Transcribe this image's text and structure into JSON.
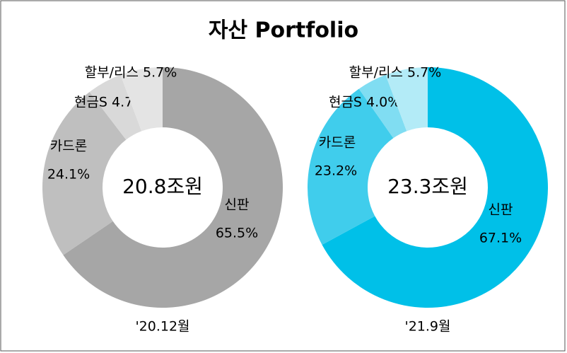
{
  "title": "자산 Portfolio",
  "chart_data": [
    {
      "type": "pie",
      "center_label": "20.8조원",
      "x_label": "'20.12월",
      "categories": [
        "신판",
        "카드론",
        "현금S",
        "할부/리스"
      ],
      "values": [
        65.5,
        24.1,
        4.7,
        5.7
      ],
      "value_labels": [
        "65.5%",
        "24.1%",
        "4.7%",
        "5.7%"
      ],
      "colors": [
        "#a6a6a6",
        "#bfbfbf",
        "#d9d9d9",
        "#e4e4e4"
      ]
    },
    {
      "type": "pie",
      "center_label": "23.3조원",
      "x_label": "'21.9월",
      "categories": [
        "신판",
        "카드론",
        "현금S",
        "할부/리스"
      ],
      "values": [
        67.1,
        23.2,
        4.0,
        5.7
      ],
      "value_labels": [
        "67.1%",
        "23.2%",
        "4.0%",
        "5.7%"
      ],
      "colors": [
        "#00c0e8",
        "#40cdec",
        "#80ddf2",
        "#b3ebf7"
      ]
    }
  ]
}
